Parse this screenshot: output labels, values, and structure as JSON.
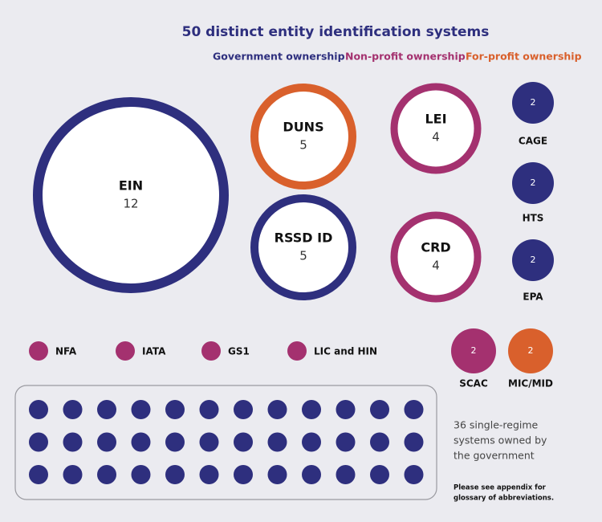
{
  "title": "50 distinct entity identification systems",
  "legend": [
    {
      "label": "Government ownership",
      "color": "#2e2f7e"
    },
    {
      "label": "Non-profit ownership",
      "color": "#a4316f"
    },
    {
      "label": "For-profit ownership",
      "color": "#d9602c"
    }
  ],
  "ringed": [
    {
      "name": "EIN",
      "count": 12,
      "color": "#2e2f7e"
    },
    {
      "name": "DUNS",
      "count": 5,
      "color": "#d9602c"
    },
    {
      "name": "RSSD ID",
      "count": 5,
      "color": "#2e2f7e"
    },
    {
      "name": "LEI",
      "count": 4,
      "color": "#a4316f"
    },
    {
      "name": "CRD",
      "count": 4,
      "color": "#a4316f"
    }
  ],
  "filled": [
    {
      "name": "CAGE",
      "count": 2,
      "color": "#2e2f7e"
    },
    {
      "name": "HTS",
      "count": 2,
      "color": "#2e2f7e"
    },
    {
      "name": "EPA",
      "count": 2,
      "color": "#2e2f7e"
    },
    {
      "name": "SCAC",
      "count": 2,
      "color": "#a4316f"
    },
    {
      "name": "MIC/MID",
      "count": 2,
      "color": "#d9602c"
    }
  ],
  "small": [
    {
      "name": "NFA",
      "color": "#a4316f"
    },
    {
      "name": "IATA",
      "color": "#a4316f"
    },
    {
      "name": "GS1",
      "color": "#a4316f"
    },
    {
      "name": "LIC and HIN",
      "color": "#a4316f"
    }
  ],
  "single_regime_color": "#2e2f7e",
  "note_lines": [
    "36 single-regime",
    "systems owned by",
    "the government"
  ],
  "appendix_lines": [
    "Please see appendix for",
    "glossary of abbreviations."
  ]
}
